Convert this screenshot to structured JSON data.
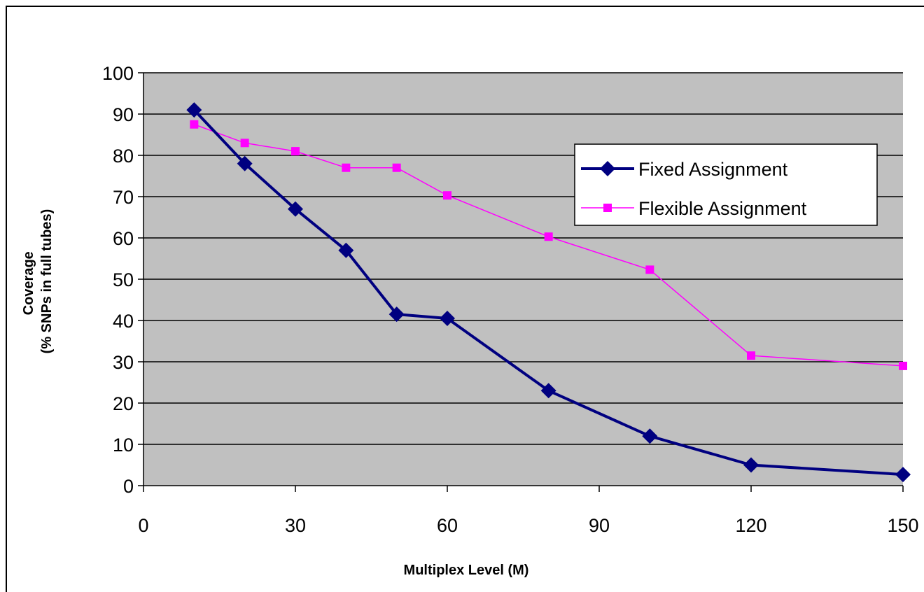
{
  "chart_data": {
    "type": "line",
    "title": "",
    "xlabel": "Multiplex Level (M)",
    "ylabel": [
      "Coverage",
      "(% SNPs in full tubes)"
    ],
    "xlim": [
      0,
      150
    ],
    "ylim": [
      0,
      100
    ],
    "xticks": [
      0,
      30,
      60,
      90,
      120,
      150
    ],
    "yticks": [
      0,
      10,
      20,
      30,
      40,
      50,
      60,
      70,
      80,
      90,
      100
    ],
    "grid": "horizontal",
    "legend_position": "top-right",
    "series": [
      {
        "name": "Fixed Assignment",
        "marker": "diamond",
        "color": "#000080",
        "x": [
          10,
          20,
          30,
          40,
          50,
          60,
          80,
          100,
          120,
          150
        ],
        "y": [
          91,
          78,
          67,
          57,
          41.5,
          40.5,
          23,
          12,
          5,
          2.7
        ]
      },
      {
        "name": "Flexible Assignment",
        "marker": "square",
        "color": "#ff00ff",
        "x": [
          10,
          20,
          30,
          40,
          50,
          60,
          80,
          100,
          120,
          150
        ],
        "y": [
          87.5,
          83,
          81,
          77,
          77,
          70.3,
          60.3,
          52.3,
          31.5,
          29
        ]
      }
    ],
    "colors": {
      "plot_background": "#c0c0c0",
      "gridline": "#000000"
    }
  }
}
